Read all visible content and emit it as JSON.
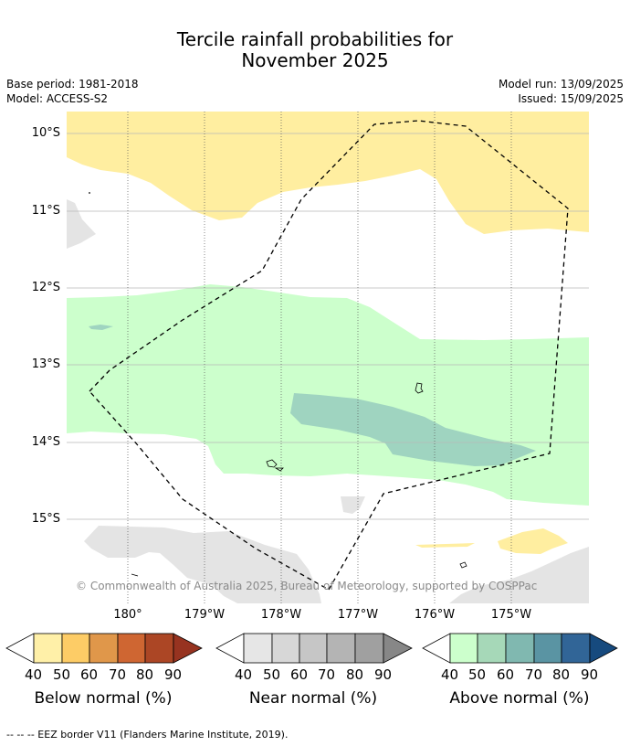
{
  "title": {
    "line1": "Tercile rainfall probabilities for",
    "line2": "November 2025"
  },
  "meta": {
    "base_period": "Base period: 1981-2018",
    "model": "Model: ACCESS-S2",
    "model_run": "Model run: 13/09/2025",
    "issued": "Issued: 15/09/2025"
  },
  "axes": {
    "lat_labels": [
      "10°S",
      "11°S",
      "12°S",
      "13°S",
      "14°S",
      "15°S"
    ],
    "lon_labels": [
      "180°",
      "179°W",
      "178°W",
      "177°W",
      "176°W",
      "175°W"
    ]
  },
  "copyright": "© Commonwealth of Australia 2025, Bureau of Meteorology, supported by COSPPac",
  "colorbars": {
    "ticks": [
      "40",
      "50",
      "60",
      "70",
      "80",
      "90"
    ],
    "below": {
      "label": "Below normal (%)",
      "colors": [
        "#fff0a8",
        "#fdcc66",
        "#e0974a",
        "#cf6632",
        "#ac4625",
        "#973320"
      ]
    },
    "near": {
      "label": "Near normal (%)",
      "colors": [
        "#e6e6e6",
        "#d7d7d7",
        "#c6c6c6",
        "#b4b4b4",
        "#a0a0a0",
        "#878787"
      ]
    },
    "above": {
      "label": "Above normal (%)",
      "colors": [
        "#ccffcc",
        "#a6d8b8",
        "#80b8b0",
        "#5a94a3",
        "#316597",
        "#164a7e"
      ]
    }
  },
  "footer": "--  --  -- EEZ border V11 (Flanders Marine Institute, 2019)."
}
